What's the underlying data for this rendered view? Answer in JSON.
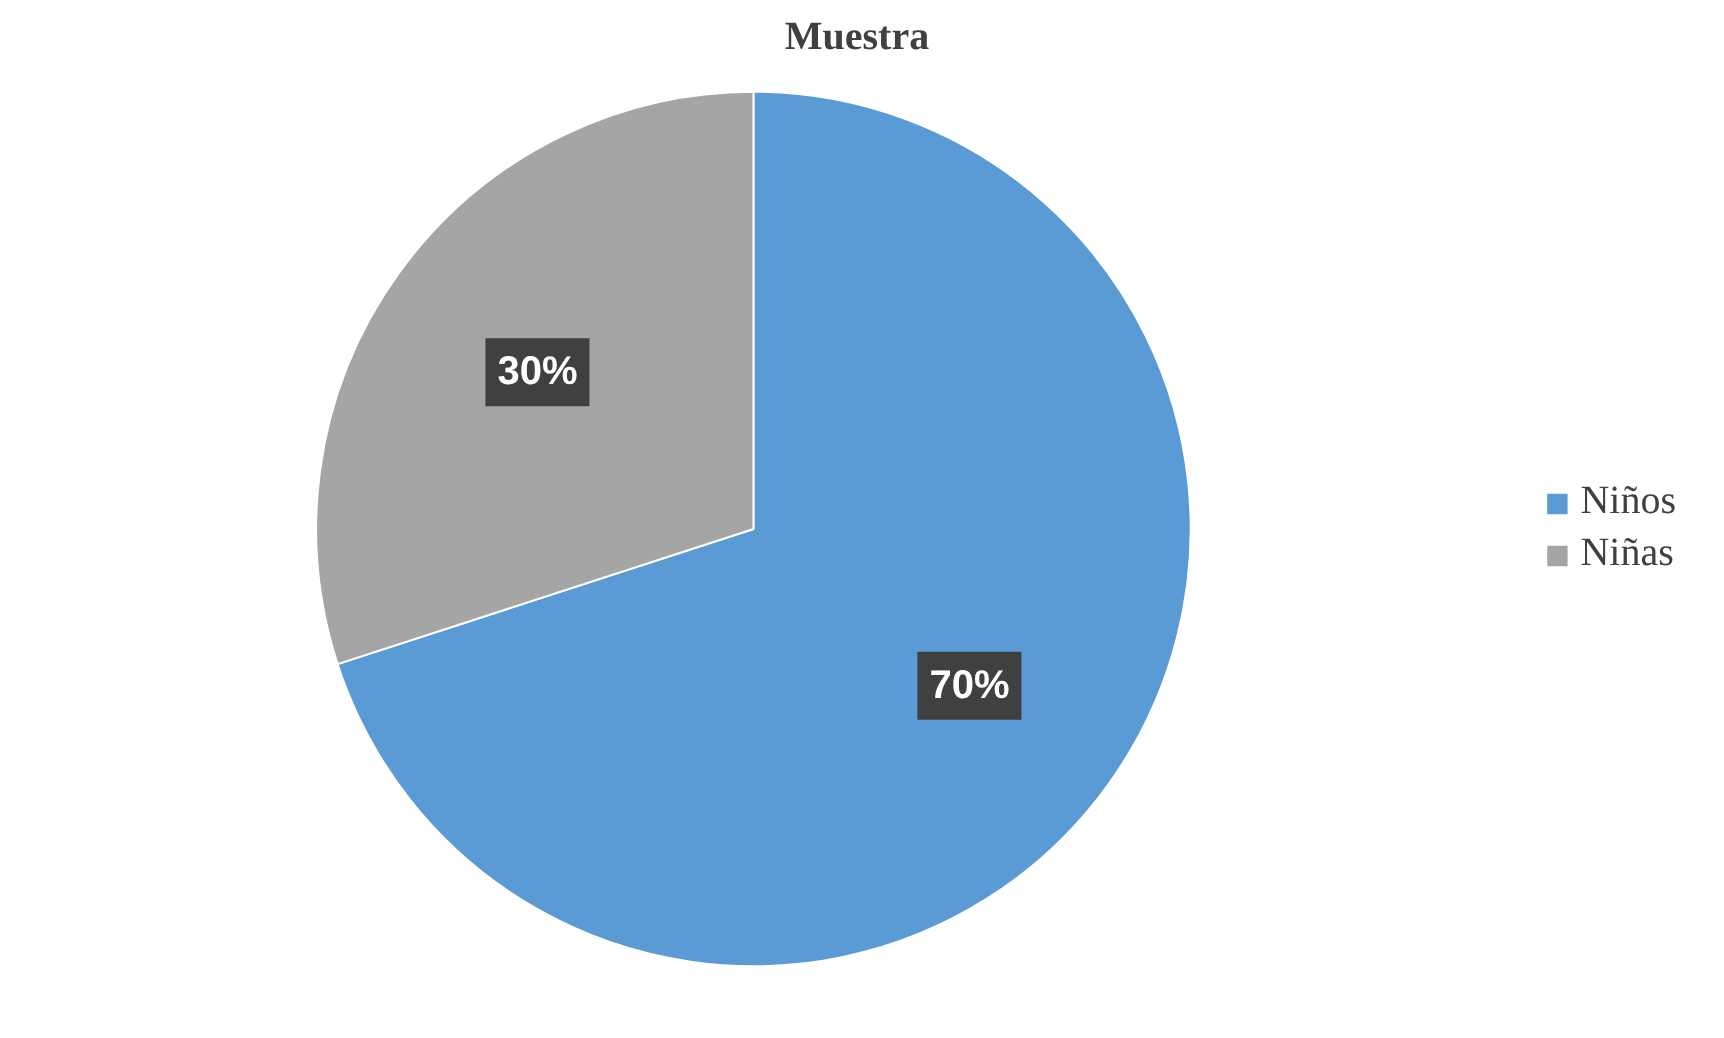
{
  "chart_data": {
    "type": "pie",
    "title": "Muestra",
    "categories": [
      "Niños",
      "Niñas"
    ],
    "values": [
      70,
      30
    ],
    "colors": [
      "#5b9bd5",
      "#a5a5a5"
    ],
    "value_labels": [
      "70%",
      "30%"
    ],
    "legend": "right"
  }
}
